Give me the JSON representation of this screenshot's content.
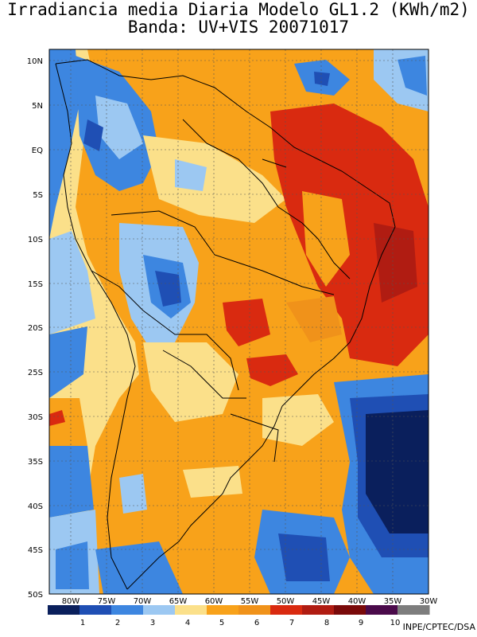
{
  "title": {
    "line1": "Irradiancia media Diaria   Modelo GL1.2 (KWh/m2)",
    "line2": "Banda: UV+VIS  20071017"
  },
  "lat_labels": [
    "10N",
    "5N",
    "EQ",
    "5S",
    "10S",
    "15S",
    "20S",
    "25S",
    "30S",
    "35S",
    "40S",
    "45S",
    "50S"
  ],
  "lon_labels": [
    "80W",
    "75W",
    "70W",
    "65W",
    "60W",
    "55W",
    "50W",
    "45W",
    "40W",
    "35W",
    "30W"
  ],
  "colorbar": {
    "colors": [
      "#0a1f5c",
      "#1f4fb4",
      "#3d86e0",
      "#9cc8f2",
      "#fbe08a",
      "#f8a21a",
      "#f0921a",
      "#d92a10",
      "#b01c12",
      "#7a0a0a",
      "#4a0a4a",
      "#7d7d7d"
    ],
    "labels": [
      "1",
      "2",
      "3",
      "4",
      "5",
      "6",
      "7",
      "8",
      "9",
      "10"
    ]
  },
  "credit": "INPE/CPTEC/DSA"
}
